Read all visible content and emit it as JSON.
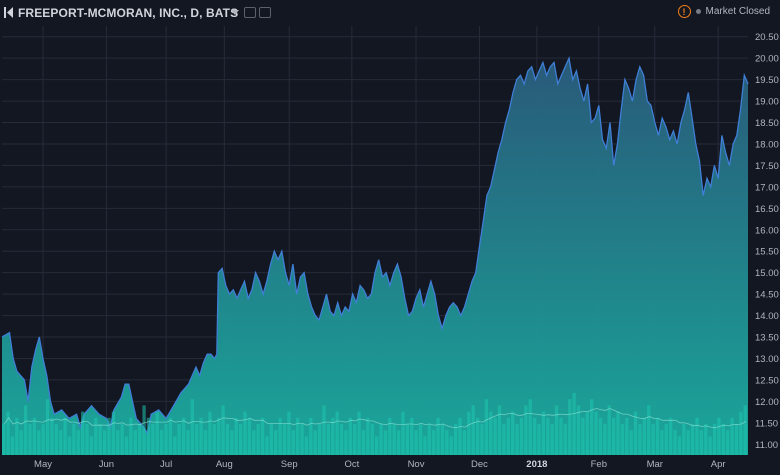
{
  "header": {
    "title": "FREEPORT-MCMORAN, INC., D, BATS",
    "status": "Market Closed"
  },
  "colors": {
    "background": "#131722",
    "grid": "#262b3a",
    "area_top": "#2a5d7e",
    "area_bottom": "#1aaea0",
    "line": "#3f7fd6",
    "volume": "#1fc7b1",
    "alert": "#f57f17"
  },
  "chart_data": {
    "type": "area",
    "grid": true,
    "price_axis_position": "right",
    "ylim": [
      10.75,
      20.75
    ],
    "y_ticks": [
      "20.50",
      "20.00",
      "19.50",
      "19.00",
      "18.50",
      "18.00",
      "17.50",
      "17.00",
      "16.50",
      "16.00",
      "15.50",
      "15.00",
      "14.50",
      "14.00",
      "13.50",
      "13.00",
      "12.50",
      "12.00",
      "11.50",
      "11.00"
    ],
    "x_ticks": [
      {
        "label": "May",
        "t": 0.055
      },
      {
        "label": "Jun",
        "t": 0.14
      },
      {
        "label": "Jul",
        "t": 0.22
      },
      {
        "label": "Aug",
        "t": 0.298
      },
      {
        "label": "Sep",
        "t": 0.385
      },
      {
        "label": "Oct",
        "t": 0.469
      },
      {
        "label": "Nov",
        "t": 0.555
      },
      {
        "label": "Dec",
        "t": 0.64
      },
      {
        "label": "2018",
        "t": 0.717,
        "bold": true
      },
      {
        "label": "Feb",
        "t": 0.8
      },
      {
        "label": "Mar",
        "t": 0.875
      },
      {
        "label": "Apr",
        "t": 0.96
      }
    ],
    "series": [
      {
        "values": [
          [
            0.0,
            13.5
          ],
          [
            0.01,
            13.6
          ],
          [
            0.015,
            13.0
          ],
          [
            0.02,
            12.7
          ],
          [
            0.03,
            12.5
          ],
          [
            0.035,
            12.0
          ],
          [
            0.04,
            12.8
          ],
          [
            0.045,
            13.2
          ],
          [
            0.05,
            13.5
          ],
          [
            0.055,
            13.0
          ],
          [
            0.06,
            12.6
          ],
          [
            0.065,
            12.0
          ],
          [
            0.07,
            11.7
          ],
          [
            0.08,
            11.8
          ],
          [
            0.09,
            11.6
          ],
          [
            0.1,
            11.7
          ],
          [
            0.105,
            11.4
          ],
          [
            0.11,
            11.7
          ],
          [
            0.12,
            11.9
          ],
          [
            0.13,
            11.7
          ],
          [
            0.14,
            11.6
          ],
          [
            0.145,
            11.4
          ],
          [
            0.15,
            11.8
          ],
          [
            0.16,
            12.1
          ],
          [
            0.165,
            12.4
          ],
          [
            0.17,
            12.4
          ],
          [
            0.175,
            12.0
          ],
          [
            0.18,
            11.6
          ],
          [
            0.19,
            11.4
          ],
          [
            0.195,
            11.25
          ],
          [
            0.2,
            11.7
          ],
          [
            0.21,
            11.8
          ],
          [
            0.22,
            11.6
          ],
          [
            0.23,
            11.9
          ],
          [
            0.24,
            12.2
          ],
          [
            0.25,
            12.4
          ],
          [
            0.255,
            12.6
          ],
          [
            0.26,
            12.8
          ],
          [
            0.265,
            12.6
          ],
          [
            0.27,
            12.9
          ],
          [
            0.275,
            13.1
          ],
          [
            0.28,
            13.1
          ],
          [
            0.285,
            13.0
          ],
          [
            0.288,
            13.1
          ],
          [
            0.29,
            15.0
          ],
          [
            0.295,
            15.1
          ],
          [
            0.3,
            14.7
          ],
          [
            0.305,
            14.5
          ],
          [
            0.31,
            14.6
          ],
          [
            0.315,
            14.4
          ],
          [
            0.32,
            14.6
          ],
          [
            0.325,
            14.8
          ],
          [
            0.33,
            14.4
          ],
          [
            0.335,
            14.6
          ],
          [
            0.34,
            15.0
          ],
          [
            0.345,
            14.8
          ],
          [
            0.35,
            14.5
          ],
          [
            0.355,
            14.8
          ],
          [
            0.36,
            15.2
          ],
          [
            0.365,
            15.5
          ],
          [
            0.37,
            15.3
          ],
          [
            0.375,
            15.5
          ],
          [
            0.38,
            15.0
          ],
          [
            0.385,
            14.7
          ],
          [
            0.39,
            15.2
          ],
          [
            0.395,
            14.5
          ],
          [
            0.4,
            14.9
          ],
          [
            0.405,
            15.0
          ],
          [
            0.41,
            14.5
          ],
          [
            0.415,
            14.2
          ],
          [
            0.42,
            14.0
          ],
          [
            0.425,
            13.9
          ],
          [
            0.43,
            14.2
          ],
          [
            0.435,
            14.5
          ],
          [
            0.44,
            14.1
          ],
          [
            0.445,
            14.0
          ],
          [
            0.45,
            14.3
          ],
          [
            0.455,
            14.0
          ],
          [
            0.46,
            14.2
          ],
          [
            0.465,
            14.1
          ],
          [
            0.47,
            14.5
          ],
          [
            0.475,
            14.3
          ],
          [
            0.48,
            14.7
          ],
          [
            0.485,
            14.6
          ],
          [
            0.49,
            14.4
          ],
          [
            0.495,
            14.5
          ],
          [
            0.5,
            15.0
          ],
          [
            0.505,
            15.3
          ],
          [
            0.51,
            14.9
          ],
          [
            0.515,
            15.0
          ],
          [
            0.52,
            14.7
          ],
          [
            0.525,
            15.0
          ],
          [
            0.53,
            15.2
          ],
          [
            0.535,
            14.9
          ],
          [
            0.54,
            14.4
          ],
          [
            0.545,
            14.0
          ],
          [
            0.55,
            14.1
          ],
          [
            0.555,
            14.4
          ],
          [
            0.56,
            14.6
          ],
          [
            0.565,
            14.2
          ],
          [
            0.57,
            14.5
          ],
          [
            0.575,
            14.8
          ],
          [
            0.58,
            14.5
          ],
          [
            0.585,
            14.0
          ],
          [
            0.59,
            13.7
          ],
          [
            0.595,
            14.0
          ],
          [
            0.6,
            14.2
          ],
          [
            0.605,
            14.3
          ],
          [
            0.61,
            14.2
          ],
          [
            0.615,
            14.0
          ],
          [
            0.62,
            14.2
          ],
          [
            0.625,
            14.5
          ],
          [
            0.63,
            14.8
          ],
          [
            0.635,
            15.0
          ],
          [
            0.64,
            15.6
          ],
          [
            0.645,
            16.2
          ],
          [
            0.65,
            16.8
          ],
          [
            0.655,
            17.0
          ],
          [
            0.66,
            17.4
          ],
          [
            0.665,
            17.8
          ],
          [
            0.67,
            18.1
          ],
          [
            0.675,
            18.5
          ],
          [
            0.68,
            18.8
          ],
          [
            0.685,
            19.2
          ],
          [
            0.69,
            19.5
          ],
          [
            0.695,
            19.6
          ],
          [
            0.7,
            19.4
          ],
          [
            0.705,
            19.7
          ],
          [
            0.71,
            19.8
          ],
          [
            0.715,
            19.5
          ],
          [
            0.72,
            19.7
          ],
          [
            0.725,
            19.9
          ],
          [
            0.73,
            19.6
          ],
          [
            0.735,
            19.8
          ],
          [
            0.74,
            19.9
          ],
          [
            0.745,
            19.4
          ],
          [
            0.75,
            19.6
          ],
          [
            0.755,
            19.8
          ],
          [
            0.76,
            20.0
          ],
          [
            0.765,
            19.5
          ],
          [
            0.77,
            19.7
          ],
          [
            0.775,
            19.3
          ],
          [
            0.78,
            19.0
          ],
          [
            0.785,
            19.4
          ],
          [
            0.79,
            18.5
          ],
          [
            0.795,
            18.6
          ],
          [
            0.8,
            18.9
          ],
          [
            0.805,
            18.1
          ],
          [
            0.81,
            17.9
          ],
          [
            0.815,
            18.5
          ],
          [
            0.82,
            17.5
          ],
          [
            0.825,
            18.0
          ],
          [
            0.83,
            18.8
          ],
          [
            0.835,
            19.5
          ],
          [
            0.84,
            19.3
          ],
          [
            0.845,
            19.0
          ],
          [
            0.85,
            19.5
          ],
          [
            0.855,
            19.8
          ],
          [
            0.86,
            19.6
          ],
          [
            0.865,
            19.0
          ],
          [
            0.87,
            18.9
          ],
          [
            0.875,
            18.5
          ],
          [
            0.88,
            18.2
          ],
          [
            0.885,
            18.6
          ],
          [
            0.89,
            18.4
          ],
          [
            0.895,
            18.1
          ],
          [
            0.9,
            18.3
          ],
          [
            0.905,
            18.0
          ],
          [
            0.91,
            18.5
          ],
          [
            0.915,
            18.8
          ],
          [
            0.92,
            19.2
          ],
          [
            0.925,
            18.6
          ],
          [
            0.93,
            18.0
          ],
          [
            0.935,
            17.6
          ],
          [
            0.94,
            16.8
          ],
          [
            0.945,
            17.2
          ],
          [
            0.95,
            17.0
          ],
          [
            0.955,
            17.5
          ],
          [
            0.96,
            17.2
          ],
          [
            0.965,
            18.2
          ],
          [
            0.97,
            17.8
          ],
          [
            0.975,
            17.5
          ],
          [
            0.98,
            18.0
          ],
          [
            0.985,
            18.2
          ],
          [
            0.99,
            18.8
          ],
          [
            0.995,
            19.6
          ],
          [
            1.0,
            19.4
          ]
        ]
      }
    ],
    "volume": [
      0.5,
      0.7,
      0.3,
      0.6,
      0.4,
      0.8,
      0.5,
      0.6,
      0.4,
      0.5,
      0.9,
      0.6,
      0.5,
      0.4,
      0.6,
      0.3,
      0.5,
      0.4,
      0.7,
      0.5,
      0.3,
      0.6,
      0.5,
      0.4,
      0.6,
      0.7,
      0.4,
      0.5,
      0.3,
      0.6,
      0.4,
      0.5,
      0.8,
      0.6,
      0.5,
      0.7,
      0.4,
      0.5,
      0.6,
      0.3,
      0.5,
      0.6,
      0.4,
      0.9,
      0.5,
      0.6,
      0.4,
      0.7,
      0.5,
      0.6,
      0.8,
      0.5,
      0.4,
      0.6,
      0.5,
      0.7,
      0.6,
      0.4,
      0.5,
      0.6,
      0.3,
      0.5,
      0.4,
      0.6,
      0.5,
      0.7,
      0.4,
      0.6,
      0.5,
      0.3,
      0.6,
      0.4,
      0.5,
      0.8,
      0.5,
      0.6,
      0.7,
      0.5,
      0.4,
      0.6,
      0.5,
      0.7,
      0.4,
      0.6,
      0.5,
      0.3,
      0.5,
      0.4,
      0.6,
      0.5,
      0.4,
      0.7,
      0.5,
      0.6,
      0.4,
      0.5,
      0.3,
      0.5,
      0.4,
      0.6,
      0.5,
      0.4,
      0.3,
      0.5,
      0.6,
      0.4,
      0.7,
      0.8,
      0.6,
      0.5,
      0.9,
      0.7,
      0.6,
      0.8,
      0.5,
      0.6,
      0.7,
      0.5,
      0.6,
      0.8,
      0.9,
      0.6,
      0.5,
      0.7,
      0.6,
      0.5,
      0.8,
      0.6,
      0.5,
      0.9,
      1.0,
      0.8,
      0.6,
      0.7,
      0.9,
      0.7,
      0.6,
      0.5,
      0.8,
      0.6,
      0.7,
      0.5,
      0.6,
      0.4,
      0.7,
      0.5,
      0.6,
      0.8,
      0.5,
      0.6,
      0.4,
      0.5,
      0.6,
      0.4,
      0.3,
      0.5,
      0.4,
      0.5,
      0.6,
      0.4,
      0.5,
      0.3,
      0.5,
      0.6,
      0.5,
      0.4,
      0.6,
      0.5,
      0.7,
      0.8
    ]
  }
}
